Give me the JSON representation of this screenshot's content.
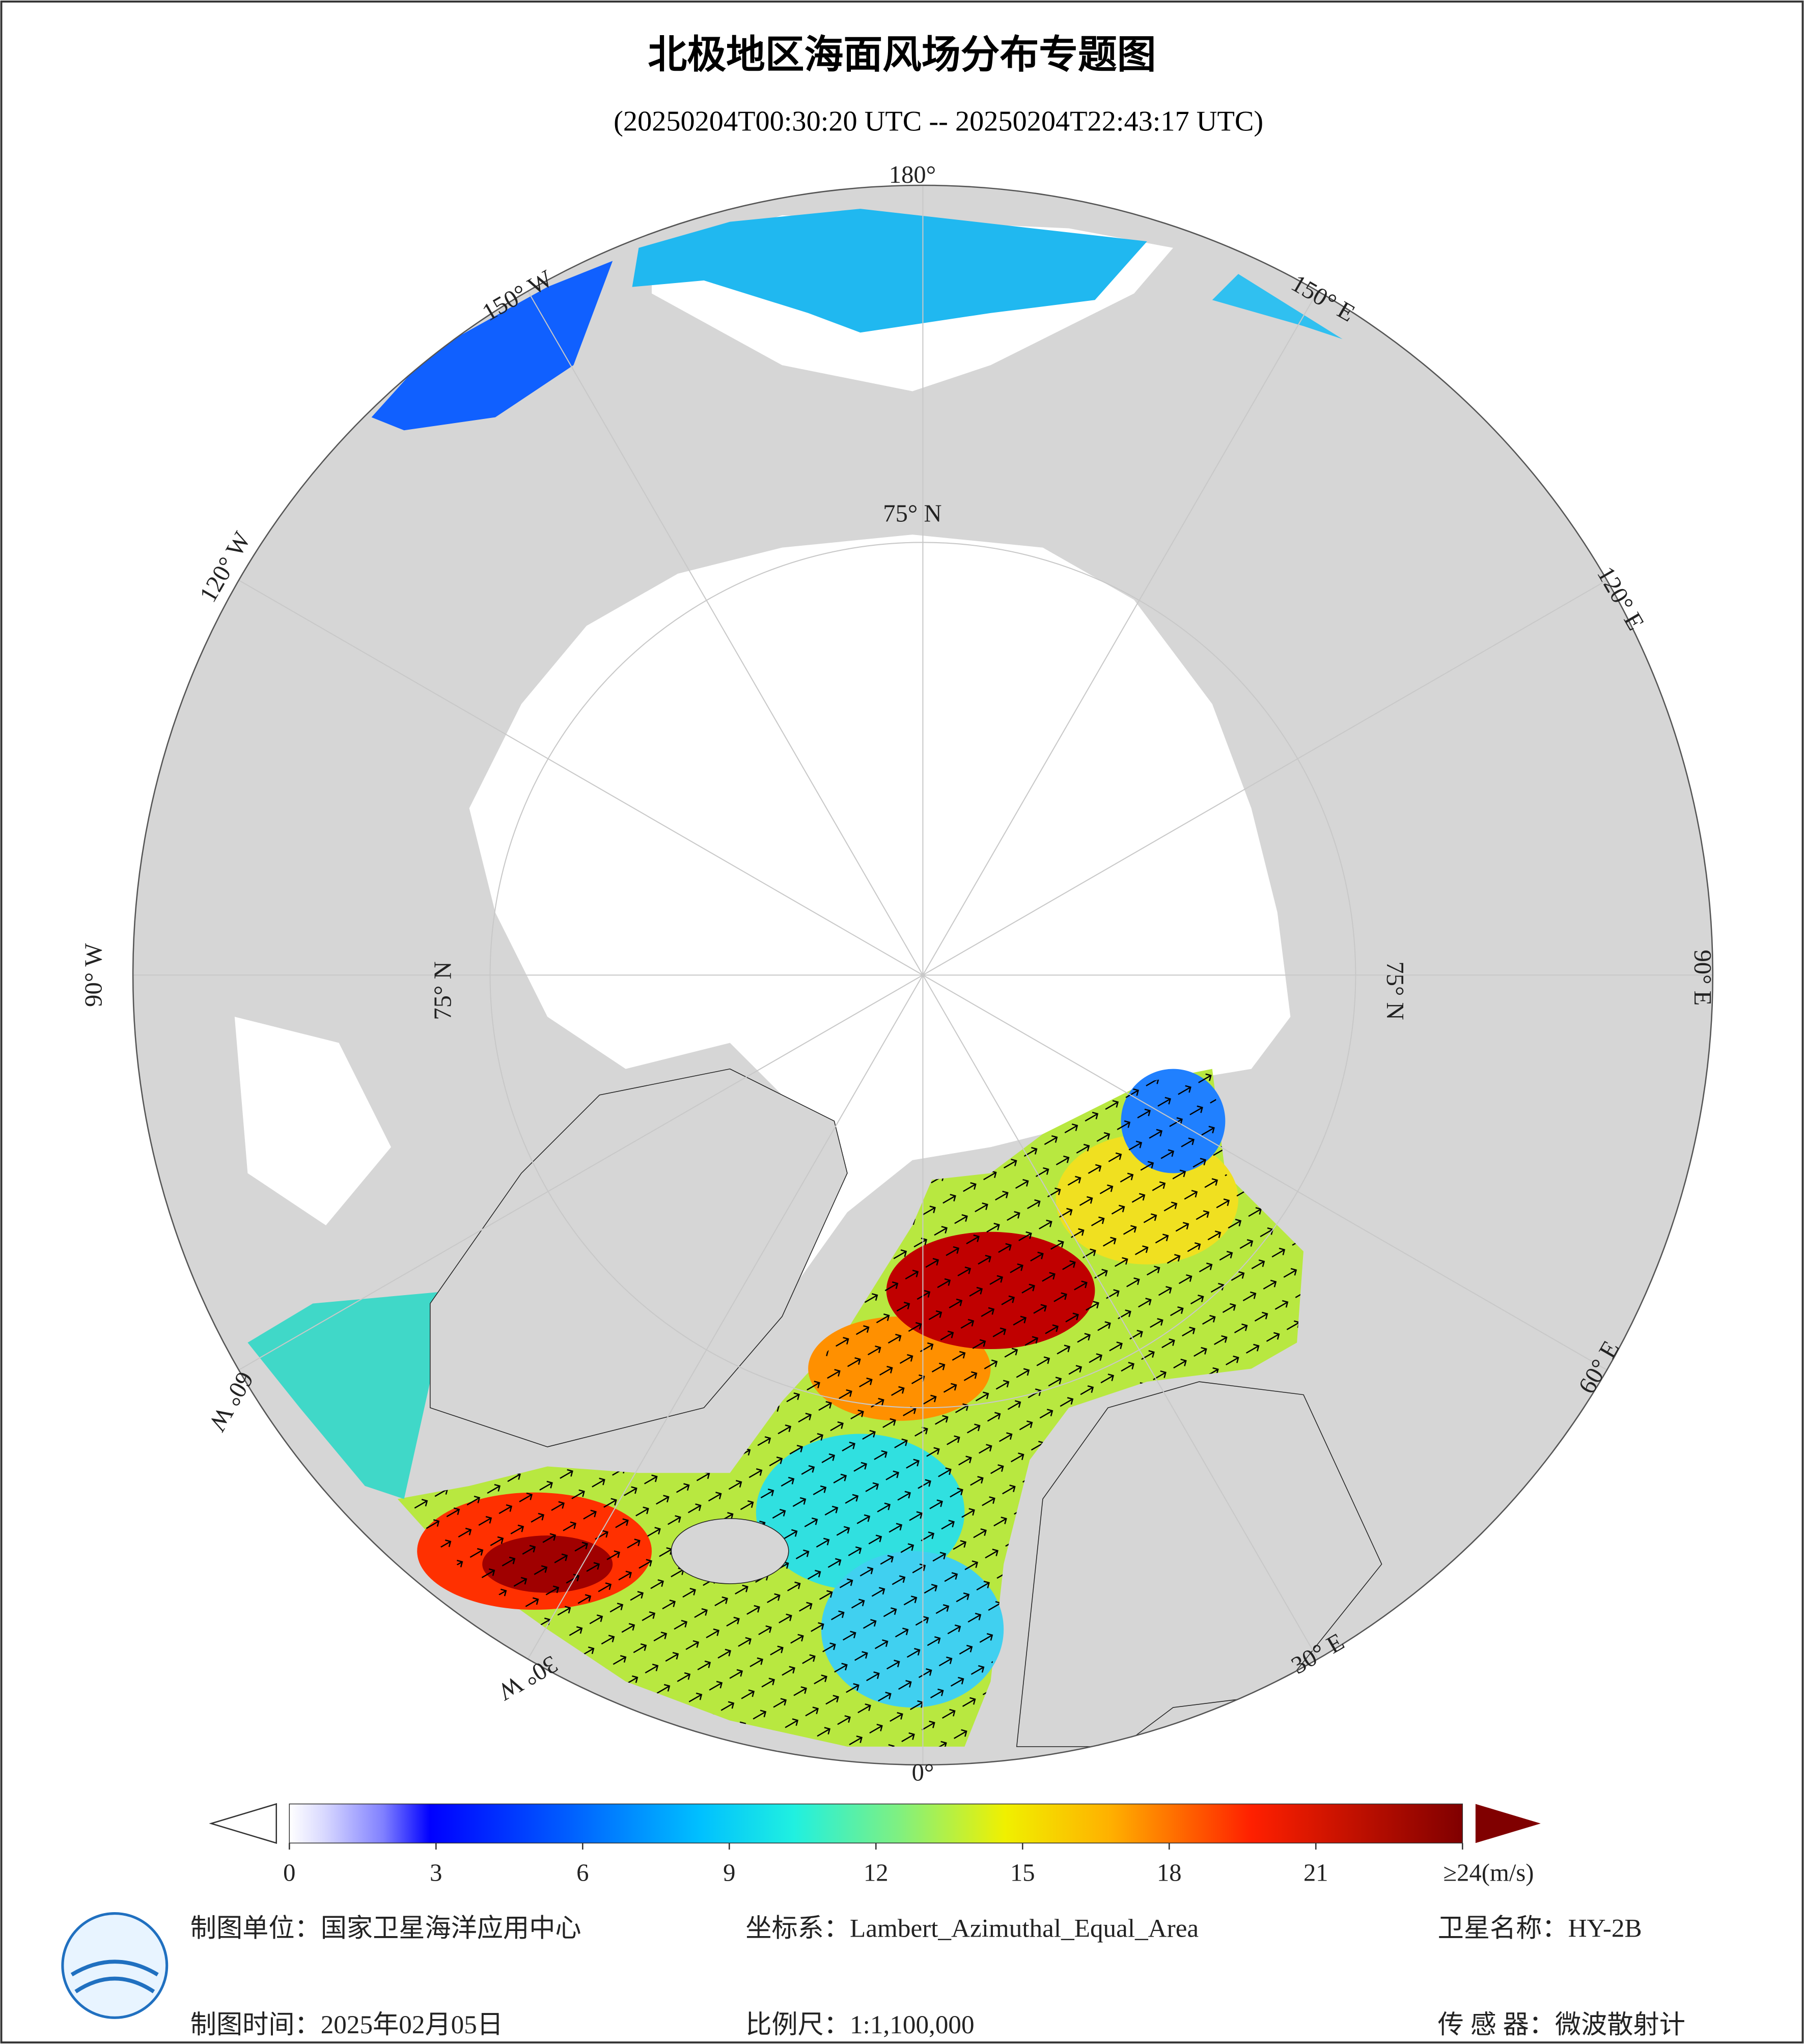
{
  "header": {
    "title": "北极地区海面风场分布专题图",
    "subtitle": "(20250204T00:30:20 UTC -- 20250204T22:43:17 UTC)"
  },
  "map": {
    "meridian_labels": [
      "180°",
      "150° W",
      "120° W",
      "90° W",
      "60° W",
      "30° W",
      "0°",
      "30° E",
      "60° E",
      "90° E",
      "120° E",
      "150° E"
    ],
    "parallel_labels": [
      "75° N",
      "75° N",
      "75° N"
    ]
  },
  "colorbar": {
    "range": [
      0,
      24
    ],
    "ticks": [
      0,
      3,
      6,
      9,
      12,
      15,
      18,
      21,
      {
        "value": 24,
        "label": "≥24(m/s)"
      }
    ]
  },
  "footer": {
    "unit": "制图单位：国家卫星海洋应用中心",
    "crs": "坐标系：Lambert_Azimuthal_Equal_Area",
    "satellite": "卫星名称：HY-2B",
    "date": "制图时间：2025年02月05日",
    "scale": "比例尺：1:1,100,000",
    "sensor": "传 感 器：微波散射计"
  }
}
